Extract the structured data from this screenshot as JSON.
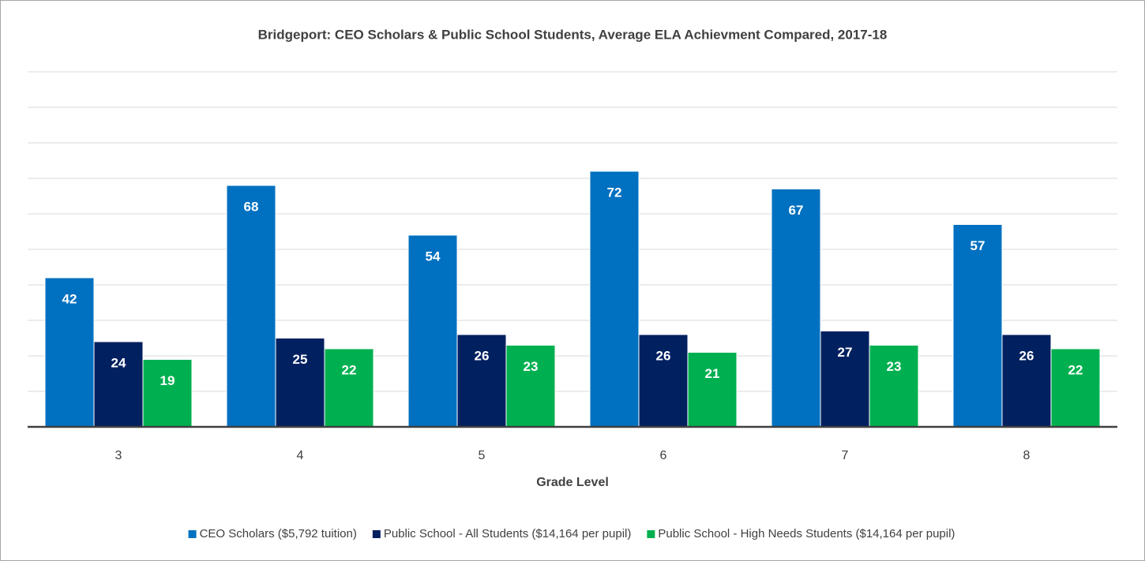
{
  "chart_data": {
    "type": "bar",
    "title": "Bridgeport: CEO Scholars & Public School Students, Average ELA Achievment Compared, 2017-18",
    "x_label": "Grade Level",
    "categories": [
      "3",
      "4",
      "5",
      "6",
      "7",
      "8"
    ],
    "series": [
      {
        "name": "CEO Scholars ($5,792 tuition)",
        "color": "#0070c0",
        "values": [
          42,
          68,
          54,
          72,
          67,
          57
        ]
      },
      {
        "name": "Public School - All Students ($14,164 per pupil)",
        "color": "#002060",
        "values": [
          24,
          25,
          26,
          26,
          27,
          26
        ]
      },
      {
        "name": "Public School - High Needs Students ($14,164 per pupil)",
        "color": "#00b050",
        "values": [
          19,
          22,
          23,
          21,
          23,
          22
        ]
      }
    ],
    "ylim": [
      0,
      100
    ],
    "yticks": [
      0,
      10,
      20,
      30,
      40,
      50,
      60,
      70,
      80,
      90,
      100
    ],
    "grid": true,
    "legend": "bottom"
  }
}
